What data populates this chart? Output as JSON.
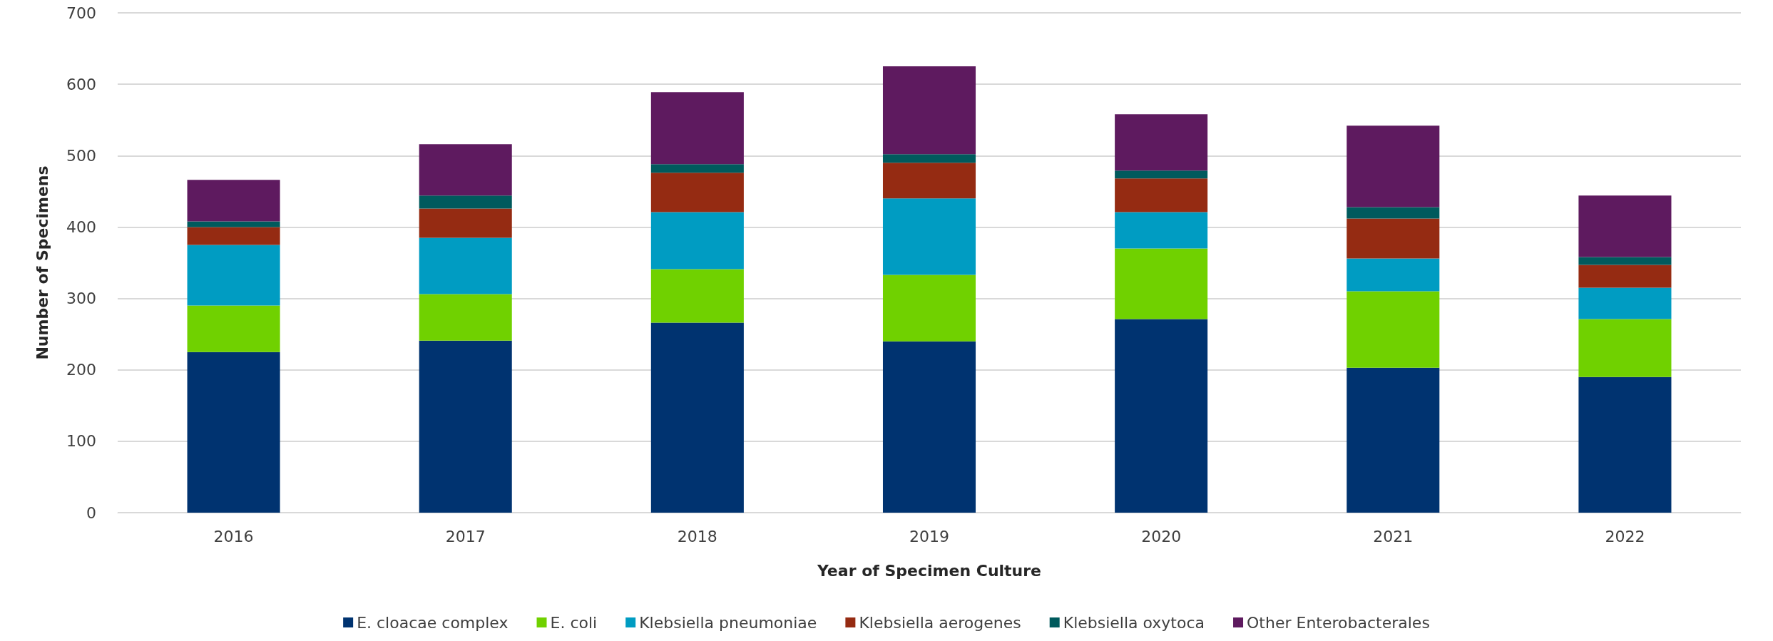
{
  "chart_data": {
    "type": "bar",
    "stacked": true,
    "xlabel": "Year of Specimen Culture",
    "ylabel": "Number of Specimens",
    "categories": [
      "2016",
      "2017",
      "2018",
      "2019",
      "2020",
      "2021",
      "2022"
    ],
    "series": [
      {
        "name": "E. cloacae complex",
        "color": "#003370",
        "values": [
          225,
          241,
          266,
          240,
          271,
          203,
          190
        ]
      },
      {
        "name": "E. coli",
        "color": "#70d100",
        "values": [
          65,
          65,
          75,
          93,
          99,
          107,
          81
        ]
      },
      {
        "name": "Klebsiella pneumoniae",
        "color": "#009cc2",
        "values": [
          85,
          79,
          80,
          107,
          51,
          46,
          44
        ]
      },
      {
        "name": "Klebsiella aerogenes",
        "color": "#952b12",
        "values": [
          25,
          41,
          55,
          50,
          47,
          56,
          32
        ]
      },
      {
        "name": "Klebsiella oxytoca",
        "color": "#005a5d",
        "values": [
          8,
          18,
          12,
          12,
          11,
          16,
          11
        ]
      },
      {
        "name": "Other Enterobacterales",
        "color": "#5e1a5f",
        "values": [
          58,
          72,
          101,
          123,
          79,
          114,
          86
        ]
      }
    ],
    "ylim": [
      0,
      700
    ],
    "yticks": [
      0,
      100,
      200,
      300,
      400,
      500,
      600,
      700
    ],
    "grid": "y",
    "legend": "bottom"
  }
}
